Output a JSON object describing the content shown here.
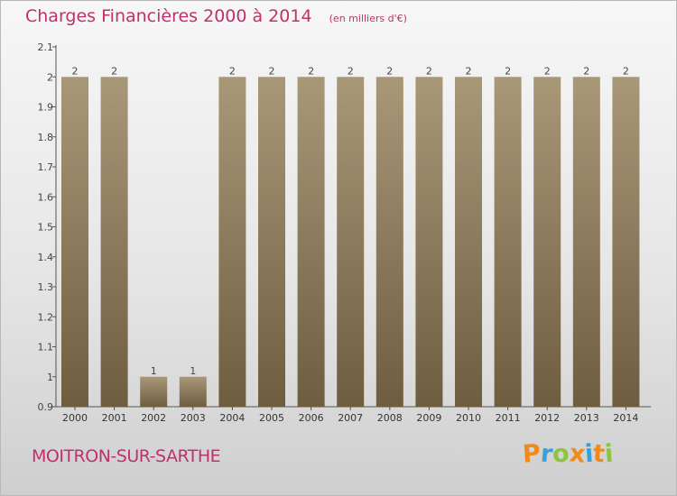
{
  "title": "Charges Financières 2000 à 2014",
  "unit": "(en milliers d'€)",
  "city": "MOITRON-SUR-SARTHE",
  "logo_text": "Proxiti",
  "colors": {
    "title": "#c0306a",
    "bar_top": "#a89878",
    "bar_bottom": "#6e5d3f",
    "logo_letters": [
      "#f08a1c",
      "#3a9fd8",
      "#8cc63f",
      "#f08a1c",
      "#3a9fd8",
      "#f08a1c",
      "#8cc63f"
    ]
  },
  "chart_data": {
    "type": "bar",
    "categories": [
      "2000",
      "2001",
      "2002",
      "2003",
      "2004",
      "2005",
      "2006",
      "2007",
      "2008",
      "2009",
      "2010",
      "2011",
      "2012",
      "2013",
      "2014"
    ],
    "values": [
      2,
      2,
      1,
      1,
      2,
      2,
      2,
      2,
      2,
      2,
      2,
      2,
      2,
      2,
      2
    ],
    "ylim": [
      0.9,
      2.1
    ],
    "yticks": [
      "0.9",
      "1",
      "1.1",
      "1.2",
      "1.3",
      "1.4",
      "1.5",
      "1.6",
      "1.7",
      "1.8",
      "1.9",
      "2",
      "2.1"
    ],
    "xlabel": "",
    "ylabel": "",
    "grid": false,
    "legend": "none"
  }
}
